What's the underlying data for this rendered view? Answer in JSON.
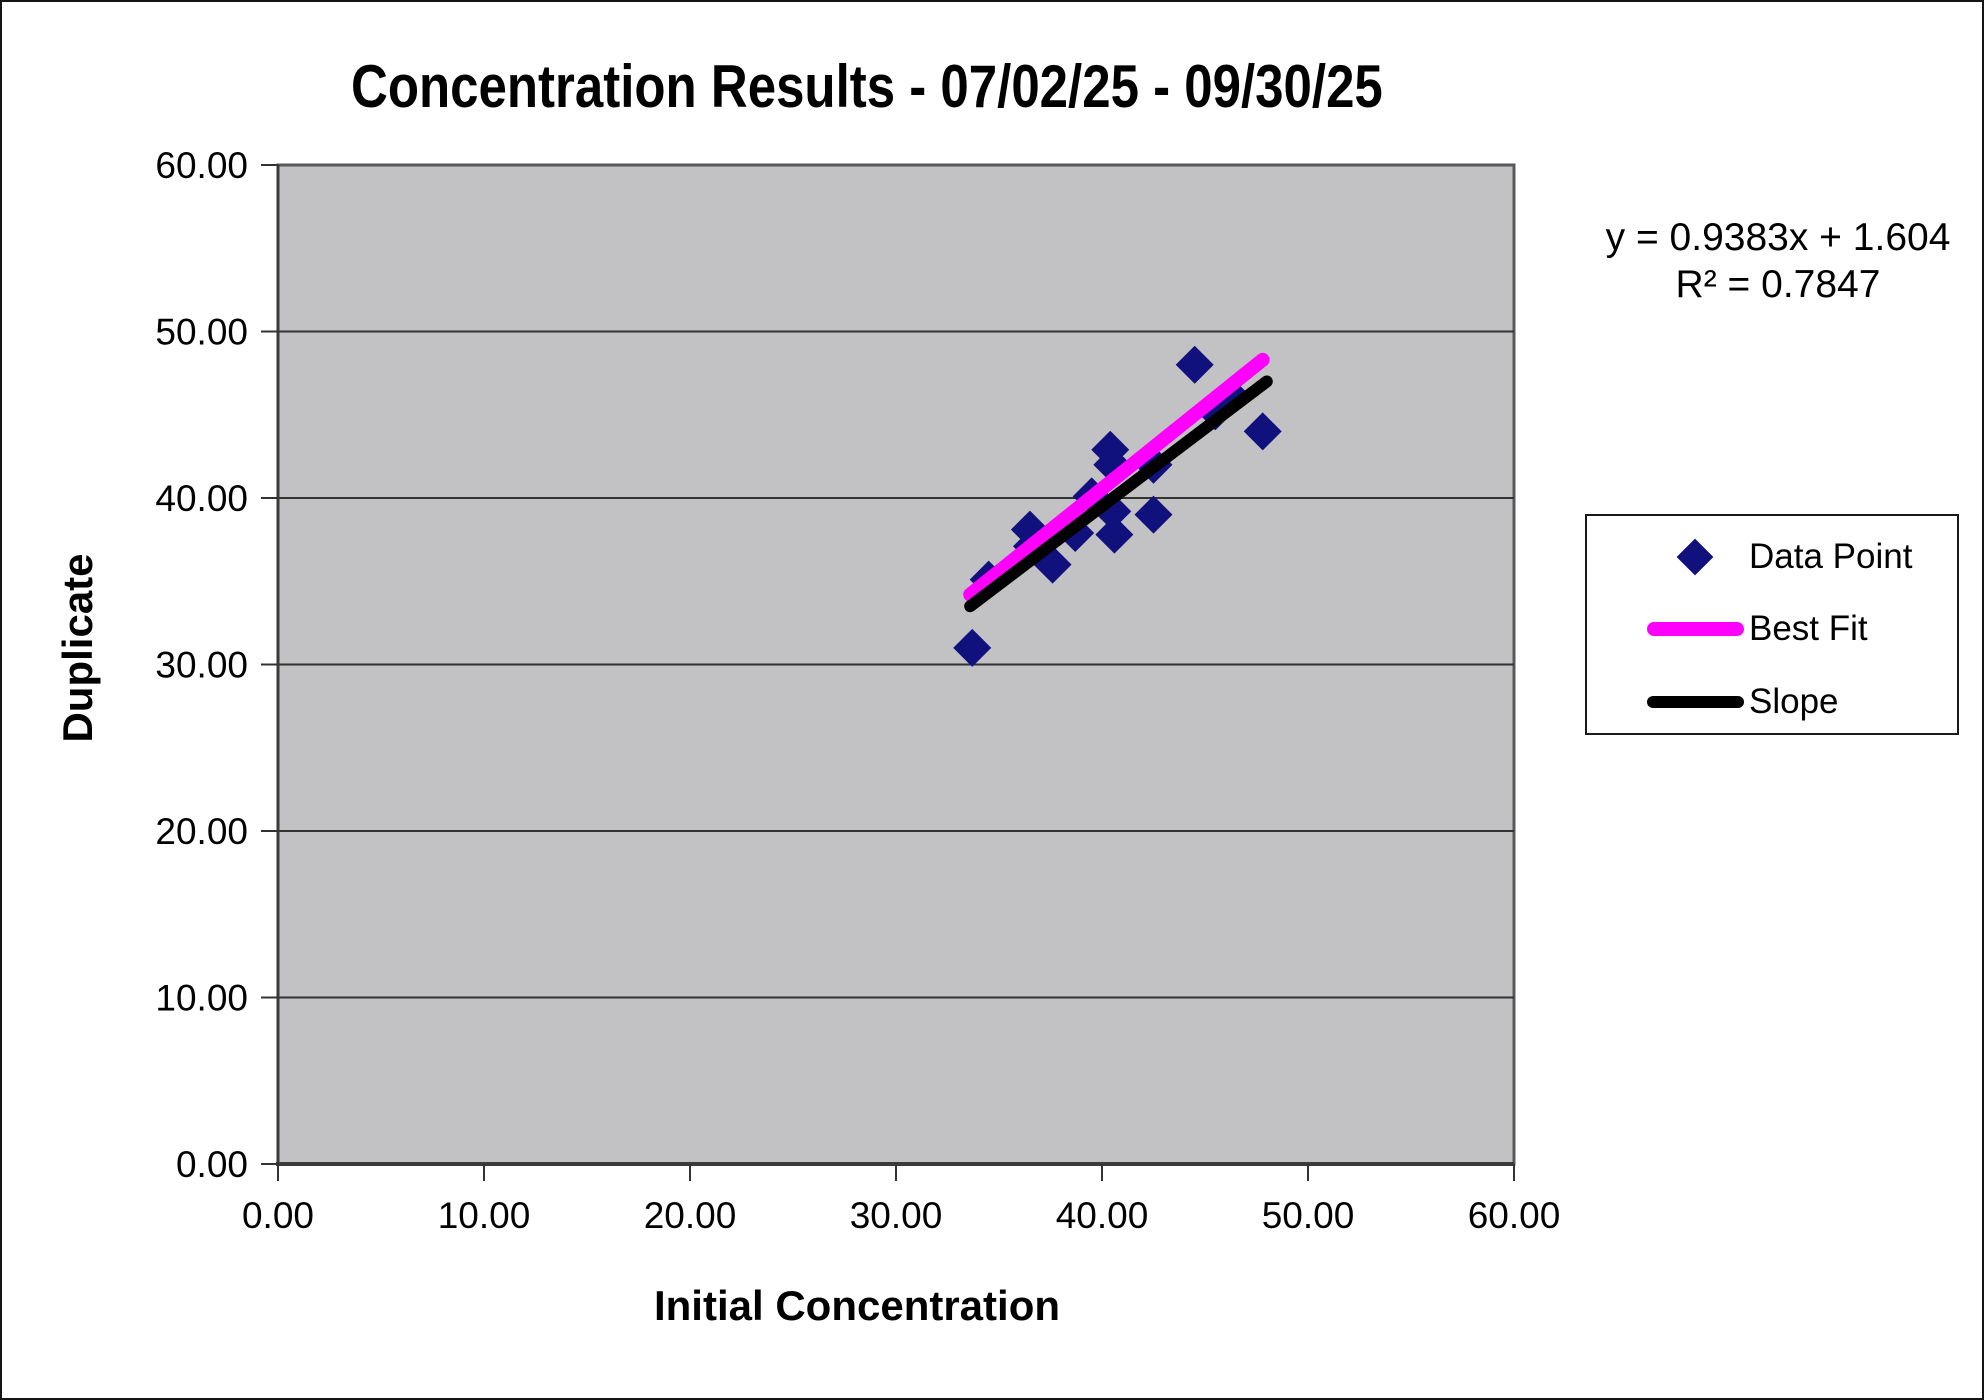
{
  "chart_data": {
    "type": "scatter",
    "title": "Concentration Results - 07/02/25 - 09/30/25",
    "xlabel": "Initial Concentration",
    "ylabel": "Duplicate",
    "xlim": [
      0,
      60
    ],
    "ylim": [
      0,
      60
    ],
    "x_tick_values": [
      0,
      10,
      20,
      30,
      40,
      50,
      60
    ],
    "x_ticks": [
      "0.00",
      "10.00",
      "20.00",
      "30.00",
      "40.00",
      "50.00",
      "60.00"
    ],
    "y_tick_values": [
      0,
      10,
      20,
      30,
      40,
      50,
      60
    ],
    "y_ticks": [
      "0.00",
      "10.00",
      "20.00",
      "30.00",
      "40.00",
      "50.00",
      "60.00"
    ],
    "grid": "horizontal-only",
    "plot_bg": "#c2c2c4",
    "gridline_color": "#333333",
    "annotation": {
      "line1": "y = 0.9383x + 1.604",
      "line2": "R² = 0.7847"
    },
    "legend": {
      "position": "right-middle",
      "border": true
    },
    "series": [
      {
        "name": "Data Point",
        "type": "scatter",
        "marker": "diamond",
        "color": "#11117d",
        "points": [
          [
            33.7,
            31.0
          ],
          [
            34.5,
            35.1
          ],
          [
            36.5,
            38.1
          ],
          [
            36.6,
            37.1
          ],
          [
            37.6,
            36.0
          ],
          [
            38.7,
            37.9
          ],
          [
            39.5,
            40.1
          ],
          [
            40.4,
            42.9
          ],
          [
            40.5,
            42.0
          ],
          [
            40.5,
            39.2
          ],
          [
            40.6,
            37.8
          ],
          [
            42.5,
            42.0
          ],
          [
            42.5,
            39.0
          ],
          [
            44.5,
            48.0
          ],
          [
            45.5,
            45.2
          ],
          [
            46.3,
            46.1
          ],
          [
            47.8,
            44.0
          ]
        ]
      },
      {
        "name": "Best Fit",
        "type": "line",
        "color": "#ff00ff",
        "width": 14,
        "points": [
          [
            33.6,
            34.2
          ],
          [
            47.8,
            48.3
          ]
        ]
      },
      {
        "name": "Slope",
        "type": "line",
        "color": "#000000",
        "width": 12,
        "points": [
          [
            33.6,
            33.5
          ],
          [
            48.0,
            47.0
          ]
        ]
      }
    ]
  }
}
